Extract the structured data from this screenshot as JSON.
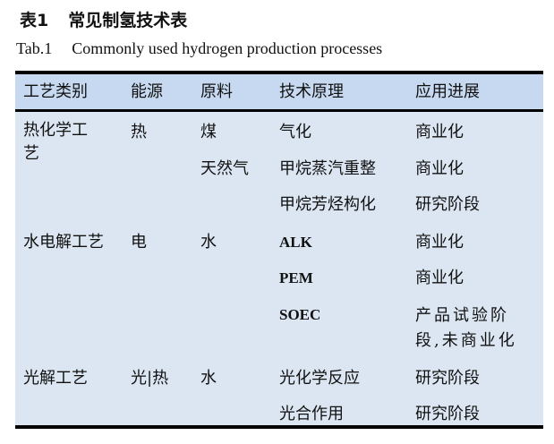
{
  "caption": {
    "number_cn": "表1",
    "title_cn": "常见制氢技术表",
    "number_en": "Tab.1",
    "title_en": "Commonly used hydrogen production processes"
  },
  "table": {
    "headers": [
      "工艺类别",
      "能源",
      "原料",
      "技术原理",
      "应用进展"
    ],
    "rows": [
      {
        "category": "热化学工艺",
        "energy": "热",
        "material": "煤",
        "principle": "气化",
        "progress": "商业化"
      },
      {
        "category": "",
        "energy": "",
        "material": "天然气",
        "principle": "甲烷蒸汽重整",
        "progress": "商业化"
      },
      {
        "category": "",
        "energy": "",
        "material": "",
        "principle": "甲烷芳烃构化",
        "progress": "研究阶段"
      },
      {
        "category": "水电解工艺",
        "energy": "电",
        "material": "水",
        "principle": "ALK",
        "progress": "商业化"
      },
      {
        "category": "",
        "energy": "",
        "material": "",
        "principle": "PEM",
        "progress": "商业化"
      },
      {
        "category": "",
        "energy": "",
        "material": "",
        "principle": "SOEC",
        "progress": "产品试验阶段,未商业化"
      },
      {
        "category": "光解工艺",
        "energy": "光|热",
        "material": "水",
        "principle": "光化学反应",
        "progress": "研究阶段"
      },
      {
        "category": "",
        "energy": "",
        "material": "",
        "principle": "光合作用",
        "progress": "研究阶段"
      }
    ]
  }
}
